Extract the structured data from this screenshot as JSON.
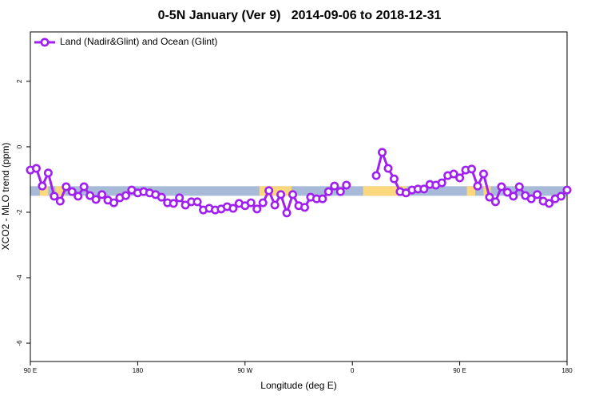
{
  "chart_data": {
    "type": "line",
    "title": "0-5N January (Ver 9)   2014-09-06 to 2018-12-31",
    "xlabel": "Longitude (deg E)",
    "ylabel": "XCO2 - MLO trend (ppm)",
    "xlim": [
      90,
      540
    ],
    "ylim": [
      -6.56,
      3.51
    ],
    "xticks": [
      {
        "value": 90,
        "label": "90 E"
      },
      180,
      {
        "value": 270,
        "label": "90 W"
      },
      {
        "value": 360,
        "label": "0"
      },
      {
        "value": 450,
        "label": "90 E"
      },
      {
        "value": 540,
        "label": "180"
      }
    ],
    "yticks": [
      -6,
      -4,
      -2,
      0,
      2
    ],
    "legend": "top-left",
    "background_band": {
      "y": -1.35,
      "ocean_color": "#a7bad8",
      "land_color": "#fcd87c",
      "land_ranges": [
        [
          98,
          105
        ],
        [
          111,
          119
        ],
        [
          282,
          309
        ],
        [
          369,
          406
        ],
        [
          456,
          463
        ],
        [
          470,
          476
        ]
      ]
    },
    "x": [
      90,
      95,
      100,
      105,
      110,
      115,
      120,
      125,
      130,
      135,
      140,
      145,
      150,
      155,
      160,
      165,
      170,
      175,
      180,
      185,
      190,
      195,
      200,
      205,
      210,
      215,
      220,
      225,
      230,
      235,
      240,
      245,
      250,
      255,
      260,
      265,
      270,
      275,
      280,
      285,
      290,
      295,
      300,
      305,
      310,
      315,
      320,
      325,
      330,
      335,
      340,
      345,
      350,
      355,
      360,
      365,
      370,
      375,
      380,
      385,
      390,
      395,
      400,
      405,
      410,
      415,
      420,
      425,
      430,
      435,
      440,
      445,
      450,
      455,
      460,
      465,
      470,
      475,
      480,
      485,
      490,
      495,
      500,
      505,
      510,
      515,
      520,
      525,
      530,
      535,
      540
    ],
    "series": [
      {
        "name": "Land (Nadir&Glint) and Ocean (Glint)",
        "color": "#a020f0",
        "values": [
          -0.71,
          -0.66,
          -1.2,
          -0.8,
          -1.51,
          -1.66,
          -1.22,
          -1.37,
          -1.51,
          -1.22,
          -1.49,
          -1.61,
          -1.46,
          -1.63,
          -1.71,
          -1.56,
          -1.49,
          -1.32,
          -1.41,
          -1.37,
          -1.41,
          -1.46,
          -1.54,
          -1.71,
          -1.73,
          -1.56,
          -1.78,
          -1.68,
          -1.68,
          -1.93,
          -1.88,
          -1.93,
          -1.9,
          -1.83,
          -1.88,
          -1.73,
          -1.8,
          -1.71,
          -1.9,
          -1.71,
          -1.34,
          -1.78,
          -1.46,
          -2.02,
          -1.46,
          -1.8,
          -1.85,
          -1.54,
          -1.59,
          -1.59,
          -1.37,
          -1.2,
          -1.37,
          -1.17,
          null,
          null,
          null,
          null,
          -0.88,
          -0.17,
          -0.66,
          -0.98,
          -1.37,
          -1.41,
          -1.32,
          -1.29,
          -1.29,
          -1.15,
          -1.17,
          -1.1,
          -0.88,
          -0.83,
          -0.95,
          -0.71,
          -0.68,
          -1.2,
          -0.83,
          -1.54,
          -1.68,
          -1.22,
          -1.39,
          -1.51,
          -1.22,
          -1.49,
          -1.59,
          -1.46,
          -1.66,
          -1.73,
          -1.59,
          -1.51,
          -1.32
        ]
      }
    ]
  }
}
